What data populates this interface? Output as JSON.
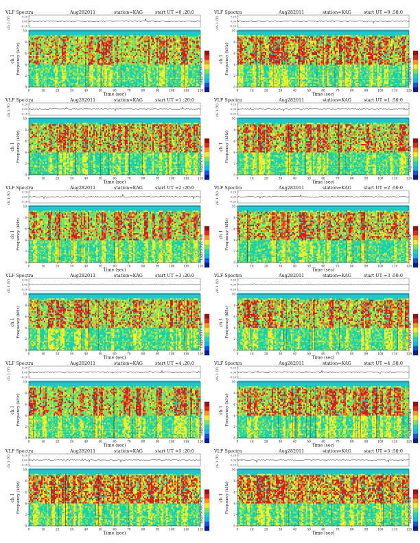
{
  "page": {
    "background": "#ffffff"
  },
  "colors": {
    "background_band": "#1ec8d2",
    "field": "#18d2a8",
    "mid": "#86e35a",
    "yellow": "#f4ef2c",
    "orange": "#f08a1a",
    "red": "#d81e1e",
    "dark": "#5a0f12",
    "waveform": "#222222",
    "colorbar": [
      "#0b1a8f",
      "#1a4fe0",
      "#16b7e8",
      "#22d2b0",
      "#7ee25a",
      "#f2ec2e",
      "#f39a1c",
      "#df2a1c",
      "#9a1010"
    ]
  },
  "chart_data": [
    {
      "type": "heatmap",
      "title_left": "VLF Spectra",
      "date": "Aug282011",
      "station": "station=KAG",
      "start": "start  UT  =0 :20:0",
      "channel_label": "ch 1",
      "waveform_ylabel": "ch 1 (V)",
      "waveform_ticks": [
        "0.20",
        "0.00",
        "-0.20"
      ],
      "ylabel": "Frequency  (kHz)",
      "yticks": [
        "0",
        "2",
        "4",
        "6",
        "8",
        "10"
      ],
      "xlabel": "Time (sec)",
      "xticks": [
        "0",
        "10",
        "20",
        "30",
        "40",
        "50",
        "60",
        "70",
        "80",
        "90",
        "100",
        "110",
        "120"
      ],
      "colorbar_label": "Log(PSD)(V²/Hz)",
      "ylim": [
        0,
        10
      ],
      "xlim": [
        0,
        120
      ]
    },
    {
      "type": "heatmap",
      "title_left": "VLF Spectra",
      "date": "Aug282011",
      "station": "station=KAG",
      "start": "start  UT  =0 :50:0",
      "channel_label": "ch 1",
      "waveform_ylabel": "ch 1 (V)",
      "waveform_ticks": [
        "0.20",
        "0.00",
        "-0.20"
      ],
      "ylabel": "Frequency  (kHz)",
      "yticks": [
        "0",
        "2",
        "4",
        "6",
        "8",
        "10"
      ],
      "xlabel": "Time (sec)",
      "xticks": [
        "0",
        "10",
        "20",
        "30",
        "40",
        "50",
        "60",
        "70",
        "80",
        "90",
        "100",
        "110",
        "120"
      ],
      "colorbar_label": "Log(PSD)(V²/Hz)",
      "ylim": [
        0,
        10
      ],
      "xlim": [
        0,
        120
      ]
    },
    {
      "type": "heatmap",
      "title_left": "VLF Spectra",
      "date": "Aug282011",
      "station": "station=KAG",
      "start": "start  UT  =1 :20:0",
      "channel_label": "ch 1",
      "waveform_ylabel": "ch 1 (V)",
      "waveform_ticks": [
        "0.20",
        "0.00",
        "-0.20"
      ],
      "ylabel": "Frequency  (kHz)",
      "yticks": [
        "0",
        "2",
        "4",
        "6",
        "8",
        "10"
      ],
      "xlabel": "Time (sec)",
      "xticks": [
        "0",
        "10",
        "20",
        "30",
        "40",
        "50",
        "60",
        "70",
        "80",
        "90",
        "100",
        "110",
        "120"
      ],
      "colorbar_label": "Log(PSD)(V²/Hz)",
      "ylim": [
        0,
        10
      ],
      "xlim": [
        0,
        120
      ]
    },
    {
      "type": "heatmap",
      "title_left": "VLF Spectra",
      "date": "Aug282011",
      "station": "station=KAG",
      "start": "start  UT  =1 :50:0",
      "channel_label": "ch 1",
      "waveform_ylabel": "ch 1 (V)",
      "waveform_ticks": [
        "0.20",
        "0.00",
        "-0.20"
      ],
      "ylabel": "Frequency  (kHz)",
      "yticks": [
        "0",
        "2",
        "4",
        "6",
        "8",
        "10"
      ],
      "xlabel": "Time (sec)",
      "xticks": [
        "0",
        "10",
        "20",
        "30",
        "40",
        "50",
        "60",
        "70",
        "80",
        "90",
        "100",
        "110",
        "120"
      ],
      "colorbar_label": "Log(PSD)(V²/Hz)",
      "ylim": [
        0,
        10
      ],
      "xlim": [
        0,
        120
      ]
    },
    {
      "type": "heatmap",
      "title_left": "VLF Spectra",
      "date": "Aug282011",
      "station": "station=KAG",
      "start": "start  UT  =2 :20:0",
      "channel_label": "ch 1",
      "waveform_ylabel": "ch 1 (V)",
      "waveform_ticks": [
        "0.20",
        "0.00",
        "-0.20"
      ],
      "ylabel": "Frequency  (kHz)",
      "yticks": [
        "0",
        "2",
        "4",
        "6",
        "8",
        "10"
      ],
      "xlabel": "Time (sec)",
      "xticks": [
        "0",
        "10",
        "20",
        "30",
        "40",
        "50",
        "60",
        "70",
        "80",
        "90",
        "100",
        "110",
        "120"
      ],
      "colorbar_label": "Log(PSD)(V²/Hz)",
      "ylim": [
        0,
        10
      ],
      "xlim": [
        0,
        120
      ]
    },
    {
      "type": "heatmap",
      "title_left": "VLF Spectra",
      "date": "Aug282011",
      "station": "station=KAG",
      "start": "start  UT  =2 :50:0",
      "channel_label": "ch 1",
      "waveform_ylabel": "ch 1 (V)",
      "waveform_ticks": [
        "0.20",
        "0.00",
        "-0.20"
      ],
      "ylabel": "Frequency  (kHz)",
      "yticks": [
        "0",
        "2",
        "4",
        "6",
        "8",
        "10"
      ],
      "xlabel": "Time (sec)",
      "xticks": [
        "0",
        "10",
        "20",
        "30",
        "40",
        "50",
        "60",
        "70",
        "80",
        "90",
        "100",
        "110",
        "120"
      ],
      "colorbar_label": "Log(PSD)(V²/Hz)",
      "ylim": [
        0,
        10
      ],
      "xlim": [
        0,
        120
      ]
    },
    {
      "type": "heatmap",
      "title_left": "VLF Spectra",
      "date": "Aug282011",
      "station": "station=KAG",
      "start": "start  UT  =3 :20:0",
      "channel_label": "ch 1",
      "waveform_ylabel": "ch 1 (V)",
      "waveform_ticks": [
        "0.20",
        "0.00",
        "-0.20"
      ],
      "ylabel": "Frequency  (kHz)",
      "yticks": [
        "0",
        "2",
        "4",
        "6",
        "8",
        "10"
      ],
      "xlabel": "Time (sec)",
      "xticks": [
        "0",
        "10",
        "20",
        "30",
        "40",
        "50",
        "60",
        "70",
        "80",
        "90",
        "100",
        "110",
        "120"
      ],
      "colorbar_label": "Log(PSD)(V²/Hz)",
      "ylim": [
        0,
        10
      ],
      "xlim": [
        0,
        120
      ]
    },
    {
      "type": "heatmap",
      "title_left": "VLF Spectra",
      "date": "Aug282011",
      "station": "station=KAG",
      "start": "start  UT  =3 :50:0",
      "channel_label": "ch 1",
      "waveform_ylabel": "ch 1 (V)",
      "waveform_ticks": [
        "0.20",
        "0.00",
        "-0.20"
      ],
      "ylabel": "Frequency  (kHz)",
      "yticks": [
        "0",
        "2",
        "4",
        "6",
        "8",
        "10"
      ],
      "xlabel": "Time (sec)",
      "xticks": [
        "0",
        "10",
        "20",
        "30",
        "40",
        "50",
        "60",
        "70",
        "80",
        "90",
        "100",
        "110",
        "120"
      ],
      "colorbar_label": "Log(PSD)(V²/Hz)",
      "ylim": [
        0,
        10
      ],
      "xlim": [
        0,
        120
      ]
    },
    {
      "type": "heatmap",
      "title_left": "VLF Spectra",
      "date": "Aug282011",
      "station": "station=KAG",
      "start": "start  UT  =4 :20:0",
      "channel_label": "ch 1",
      "waveform_ylabel": "ch 1 (V)",
      "waveform_ticks": [
        "0.20",
        "0.00",
        "-0.20"
      ],
      "ylabel": "Frequency  (kHz)",
      "yticks": [
        "0",
        "2",
        "4",
        "6",
        "8",
        "10"
      ],
      "xlabel": "Time (sec)",
      "xticks": [
        "0",
        "10",
        "20",
        "30",
        "40",
        "50",
        "60",
        "70",
        "80",
        "90",
        "100",
        "110",
        "120"
      ],
      "colorbar_label": "Log(PSD)(V²/Hz)",
      "ylim": [
        0,
        10
      ],
      "xlim": [
        0,
        120
      ]
    },
    {
      "type": "heatmap",
      "title_left": "VLF Spectra",
      "date": "Aug282011",
      "station": "station=KAG",
      "start": "start  UT  =4 :50:0",
      "channel_label": "ch 1",
      "waveform_ylabel": "ch 1 (V)",
      "waveform_ticks": [
        "0.20",
        "0.00",
        "-0.20"
      ],
      "ylabel": "Frequency  (kHz)",
      "yticks": [
        "0",
        "2",
        "4",
        "6",
        "8",
        "10"
      ],
      "xlabel": "Time (sec)",
      "xticks": [
        "0",
        "10",
        "20",
        "30",
        "40",
        "50",
        "60",
        "70",
        "80",
        "90",
        "100",
        "110",
        "120"
      ],
      "colorbar_label": "Log(PSD)(V²/Hz)",
      "ylim": [
        0,
        10
      ],
      "xlim": [
        0,
        120
      ]
    },
    {
      "type": "heatmap",
      "title_left": "VLF Spectra",
      "date": "Aug282011",
      "station": "station=KAG",
      "start": "start  UT  =5 :20:0",
      "channel_label": "ch 1",
      "waveform_ylabel": "ch 1 (V)",
      "waveform_ticks": [
        "0.20",
        "0.00",
        "-0.20"
      ],
      "ylabel": "Frequency  (kHz)",
      "yticks": [
        "0",
        "2",
        "4",
        "6",
        "8",
        "10"
      ],
      "xlabel": "Time (sec)",
      "xticks": [
        "0",
        "10",
        "20",
        "30",
        "40",
        "50",
        "60",
        "70",
        "80",
        "90",
        "100",
        "110",
        "120"
      ],
      "colorbar_label": "Log(PSD)(V²/Hz)",
      "ylim": [
        0,
        10
      ],
      "xlim": [
        0,
        120
      ]
    },
    {
      "type": "heatmap",
      "title_left": "VLF Spectra",
      "date": "Aug282011",
      "station": "station=KAG",
      "start": "start  UT  =5 :50:0",
      "channel_label": "ch 1",
      "waveform_ylabel": "ch 1 (V)",
      "waveform_ticks": [
        "0.20",
        "0.00",
        "-0.20"
      ],
      "ylabel": "Frequency  (kHz)",
      "yticks": [
        "0",
        "2",
        "4",
        "6",
        "8",
        "10"
      ],
      "xlabel": "Time (sec)",
      "xticks": [
        "0",
        "10",
        "20",
        "30",
        "40",
        "50",
        "60",
        "70",
        "80",
        "90",
        "100",
        "110",
        "120"
      ],
      "colorbar_label": "Log(PSD)(V²/Hz)",
      "ylim": [
        0,
        10
      ],
      "xlim": [
        0,
        120
      ]
    }
  ]
}
